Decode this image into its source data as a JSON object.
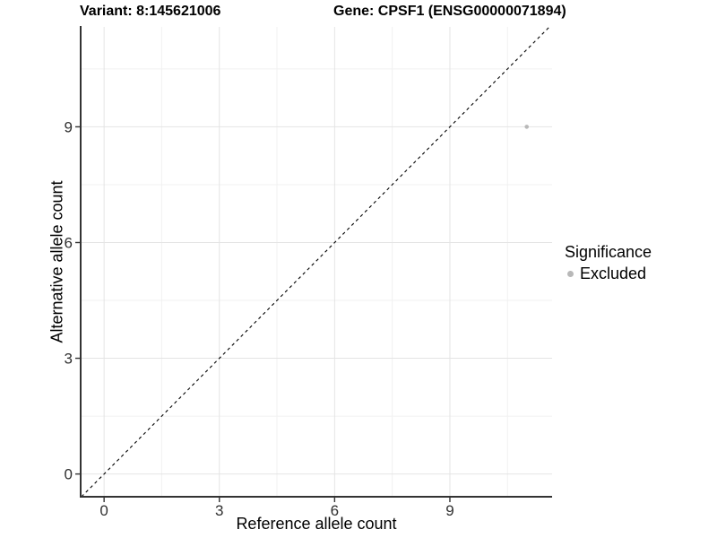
{
  "titles": {
    "variant": "Variant: 8:145621006",
    "gene": "Gene: CPSF1 (ENSG00000071894)"
  },
  "chart_data": {
    "type": "scatter",
    "title_left": "Variant: 8:145621006",
    "title_right": "Gene: CPSF1 (ENSG00000071894)",
    "xlabel": "Reference allele count",
    "ylabel": "Alternative allele count",
    "xlim": [
      -0.61,
      11.66
    ],
    "ylim": [
      -0.59,
      11.59
    ],
    "x_ticks": [
      0,
      3,
      6,
      9
    ],
    "y_ticks": [
      0,
      3,
      6,
      9
    ],
    "x_minor_ticks": [
      1.5,
      4.5,
      7.5,
      10.5
    ],
    "y_minor_ticks": [
      1.5,
      4.5,
      7.5,
      10.5
    ],
    "grid": true,
    "series": [
      {
        "name": "Excluded",
        "color": "#b8b8b8",
        "points": [
          {
            "x": 11,
            "y": 9
          }
        ]
      }
    ],
    "reference_line": {
      "slope": 1,
      "intercept": 0,
      "style": "dashed",
      "color": "#000000",
      "meaning": "identity line y = x"
    },
    "legend": {
      "title": "Significance",
      "position": "right",
      "items": [
        {
          "label": "Excluded",
          "color": "#b8b8b8"
        }
      ]
    },
    "colors": {
      "panel_background": "#ffffff",
      "grid_major": "#e4e4e4",
      "grid_minor": "#f1f1f1",
      "axis_line": "#333333",
      "tick_label": "#303030",
      "point": "#b8b8b8"
    }
  }
}
